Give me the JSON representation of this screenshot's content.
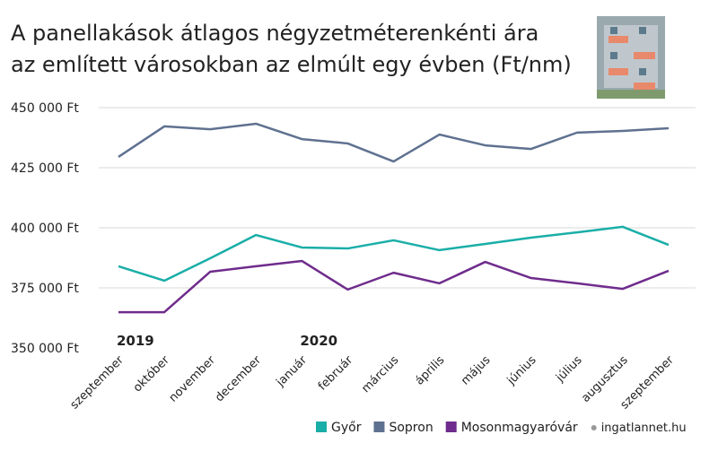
{
  "chart_data": {
    "type": "line",
    "title": [
      "A panellakások átlagos négyzetméterenkénti ára",
      "az említett városokban az elmúlt egy évben (Ft/nm)"
    ],
    "categories": [
      "szeptember",
      "október",
      "november",
      "december",
      "január",
      "február",
      "március",
      "április",
      "május",
      "június",
      "július",
      "augusztus",
      "szeptember"
    ],
    "annotations": [
      "2019",
      "2020"
    ],
    "series": [
      {
        "name": "Győr",
        "color": "#1aaea8",
        "values": [
          384000,
          378000,
          387300,
          397000,
          391800,
          391400,
          394800,
          390700,
          393300,
          395900,
          398100,
          400400,
          392900
        ]
      },
      {
        "name": "Sopron",
        "color": "#5f7190",
        "values": [
          429500,
          442200,
          441000,
          443300,
          436900,
          435100,
          427600,
          438800,
          434300,
          432800,
          439600,
          440300,
          441400
        ]
      },
      {
        "name": "Mosonmagyaróvár",
        "color": "#6f2c8c",
        "values": [
          364900,
          364900,
          381700,
          384000,
          386200,
          374300,
          381300,
          376900,
          385800,
          379100,
          376900,
          374600,
          382100
        ]
      }
    ],
    "ylim": [
      350000,
      450000
    ],
    "yticks": [
      {
        "value": 350000,
        "label": "350 000 Ft"
      },
      {
        "value": 375000,
        "label": "375 000 Ft"
      },
      {
        "value": 400000,
        "label": "400 000 Ft"
      },
      {
        "value": 425000,
        "label": "425 000 Ft"
      },
      {
        "value": 450000,
        "label": "450 000 Ft"
      }
    ],
    "grid": true,
    "source": "ingatlannet.hu"
  }
}
